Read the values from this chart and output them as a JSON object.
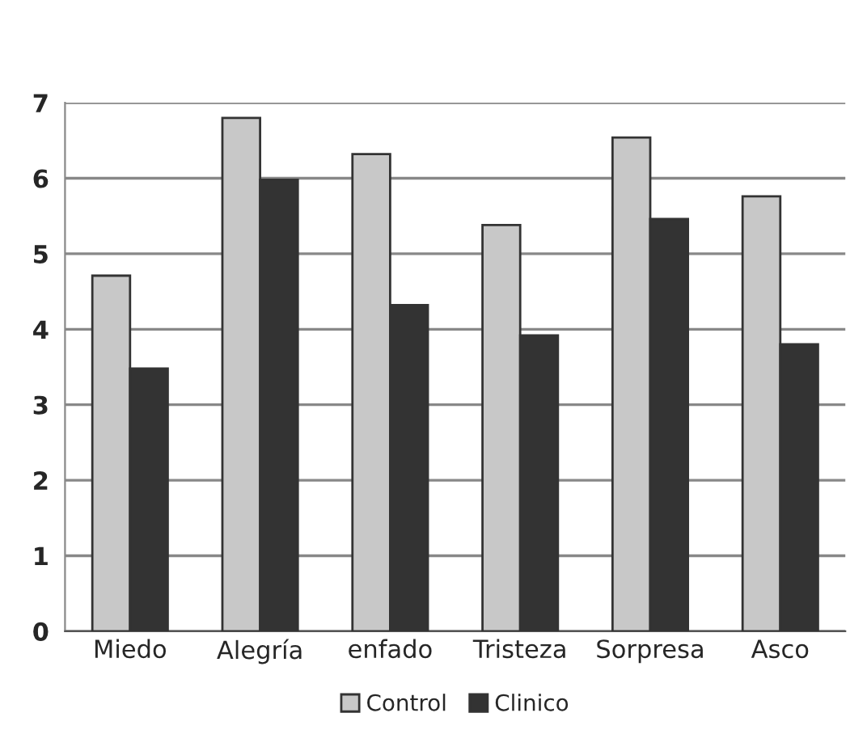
{
  "chart_data": {
    "type": "bar",
    "categories": [
      "Miedo",
      "Alegría",
      "enfado",
      "Tristeza",
      "Sorpresa",
      "Asco"
    ],
    "series": [
      {
        "name": "Control",
        "color": "#c8c8c8",
        "values": [
          4.71,
          6.8,
          6.32,
          5.38,
          6.54,
          5.76
        ]
      },
      {
        "name": "Clinico",
        "color": "#333333",
        "values": [
          3.48,
          5.98,
          4.32,
          3.92,
          5.46,
          3.8
        ]
      }
    ],
    "ylim": [
      0,
      7
    ],
    "yticks": [
      0,
      1,
      2,
      3,
      4,
      5,
      6,
      7
    ],
    "grid": "y",
    "legend": "bottom"
  }
}
